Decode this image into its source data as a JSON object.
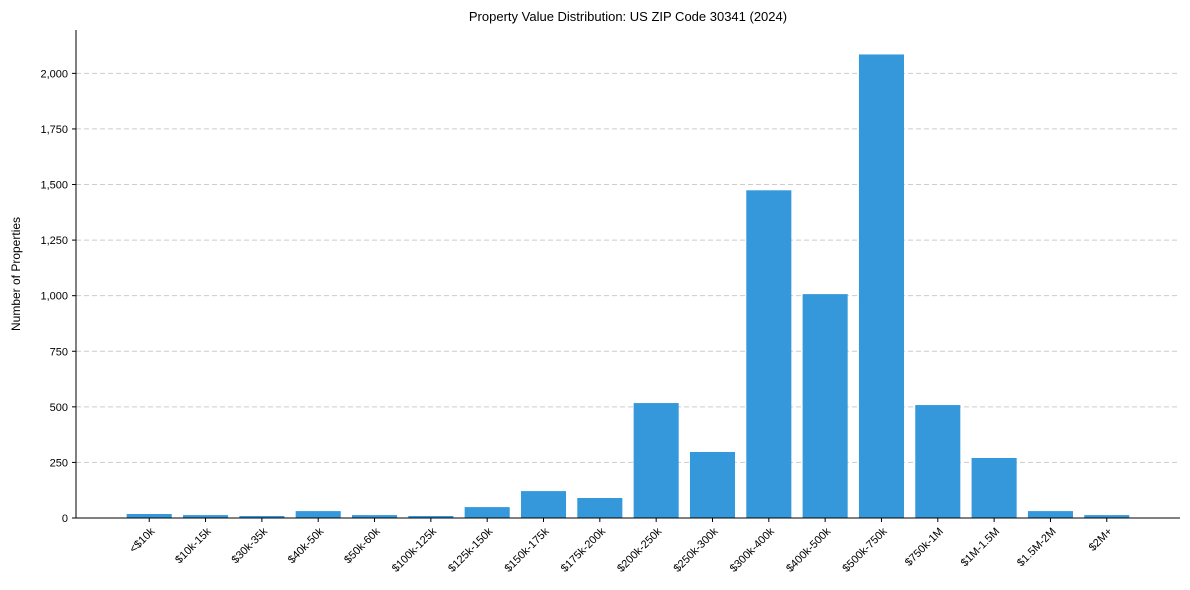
{
  "chart_data": {
    "type": "bar",
    "title": "Property Value Distribution: US ZIP Code 30341 (2024)",
    "xlabel": "",
    "ylabel": "Number of Properties",
    "categories": [
      "<$10k",
      "$10k-15k",
      "$30k-35k",
      "$40k-50k",
      "$50k-60k",
      "$100k-125k",
      "$125k-150k",
      "$150k-175k",
      "$175k-200k",
      "$200k-250k",
      "$250k-300k",
      "$300k-400k",
      "$400k-500k",
      "$500k-750k",
      "$750k-1M",
      "$1M-1.5M",
      "$1.5M-2M",
      "$2M+"
    ],
    "values": [
      18,
      13,
      9,
      31,
      13,
      9,
      49,
      121,
      90,
      517,
      297,
      1474,
      1007,
      2085,
      508,
      270,
      31,
      13
    ],
    "ylim": [
      0,
      2195
    ],
    "yticks": [
      0,
      250,
      500,
      750,
      1000,
      1250,
      1500,
      1750,
      2000
    ],
    "ytick_labels": [
      "0",
      "250",
      "500",
      "750",
      "1,000",
      "1,250",
      "1,500",
      "1,750",
      "2,000"
    ],
    "grid": "y, dashed",
    "bar_color": "#3498db"
  }
}
